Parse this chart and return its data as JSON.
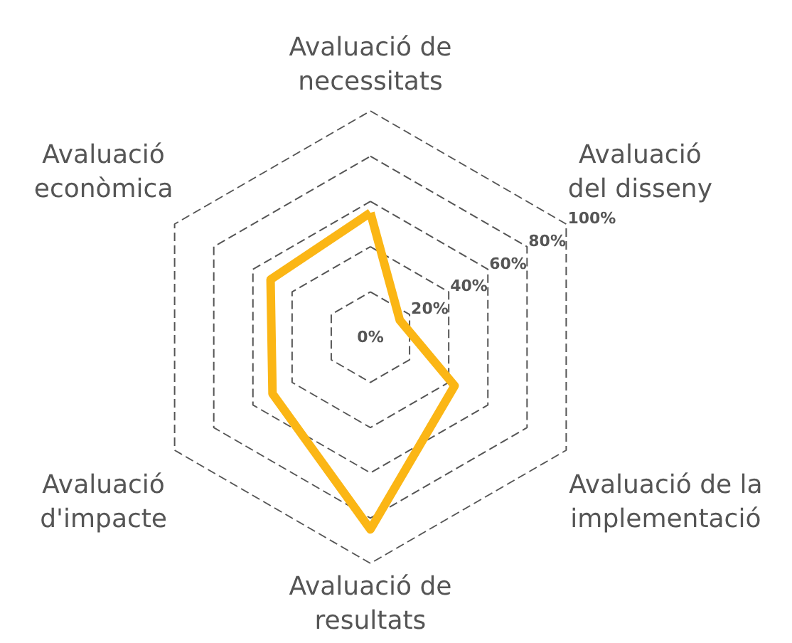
{
  "chart_data": {
    "type": "radar",
    "categories": [
      "Avaluació de\nnecessitats",
      "Avaluació\ndel disseny",
      "Avaluació de la\nimplementació",
      "Avaluació de\nresultats",
      "Avaluació\nd'impacte",
      "Avaluació\neconòmica"
    ],
    "series": [
      {
        "color": "#fbb615",
        "values": [
          55,
          15,
          43,
          85,
          50,
          51
        ]
      }
    ],
    "ylim": [
      0,
      100
    ],
    "yticks": [
      {
        "value": 0,
        "label": "0%"
      },
      {
        "value": 20,
        "label": "20%"
      },
      {
        "value": 40,
        "label": "40%"
      },
      {
        "value": 60,
        "label": "60%"
      },
      {
        "value": 80,
        "label": "80%"
      },
      {
        "value": 100,
        "label": "100%"
      }
    ],
    "grid": true,
    "line_style": "solid",
    "marker": "none"
  }
}
